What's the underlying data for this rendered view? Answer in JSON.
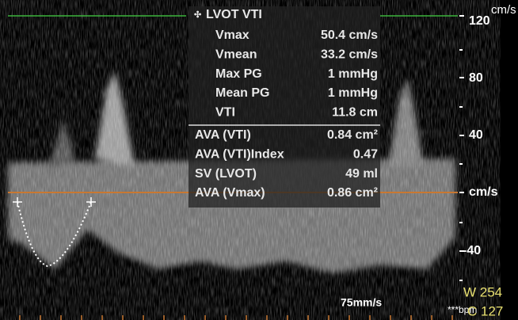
{
  "panel": {
    "title": "LVOT VTI",
    "measurements": [
      [
        "Vmax",
        "50.4 cm/s"
      ],
      [
        "Vmean",
        "33.2 cm/s"
      ],
      [
        "Max PG",
        "1 mmHg"
      ],
      [
        "Mean PG",
        "1 mmHg"
      ],
      [
        "VTI",
        "11.8 cm"
      ]
    ],
    "derived": [
      [
        "AVA (VTI)",
        "0.84 cm²"
      ],
      [
        "AVA (VTI)Index",
        "0.47"
      ],
      [
        "SV (LVOT)",
        "49 ml"
      ],
      [
        "AVA (Vmax)",
        "0.86 cm²"
      ]
    ]
  },
  "scale": {
    "unit_top": "cm/s",
    "labels": [
      "120",
      "80",
      "40",
      "cm/s",
      "-40"
    ]
  },
  "sweep": "75mm/s",
  "window": {
    "w": "W 254",
    "c": "C 127",
    "bpm": "***bpm"
  }
}
